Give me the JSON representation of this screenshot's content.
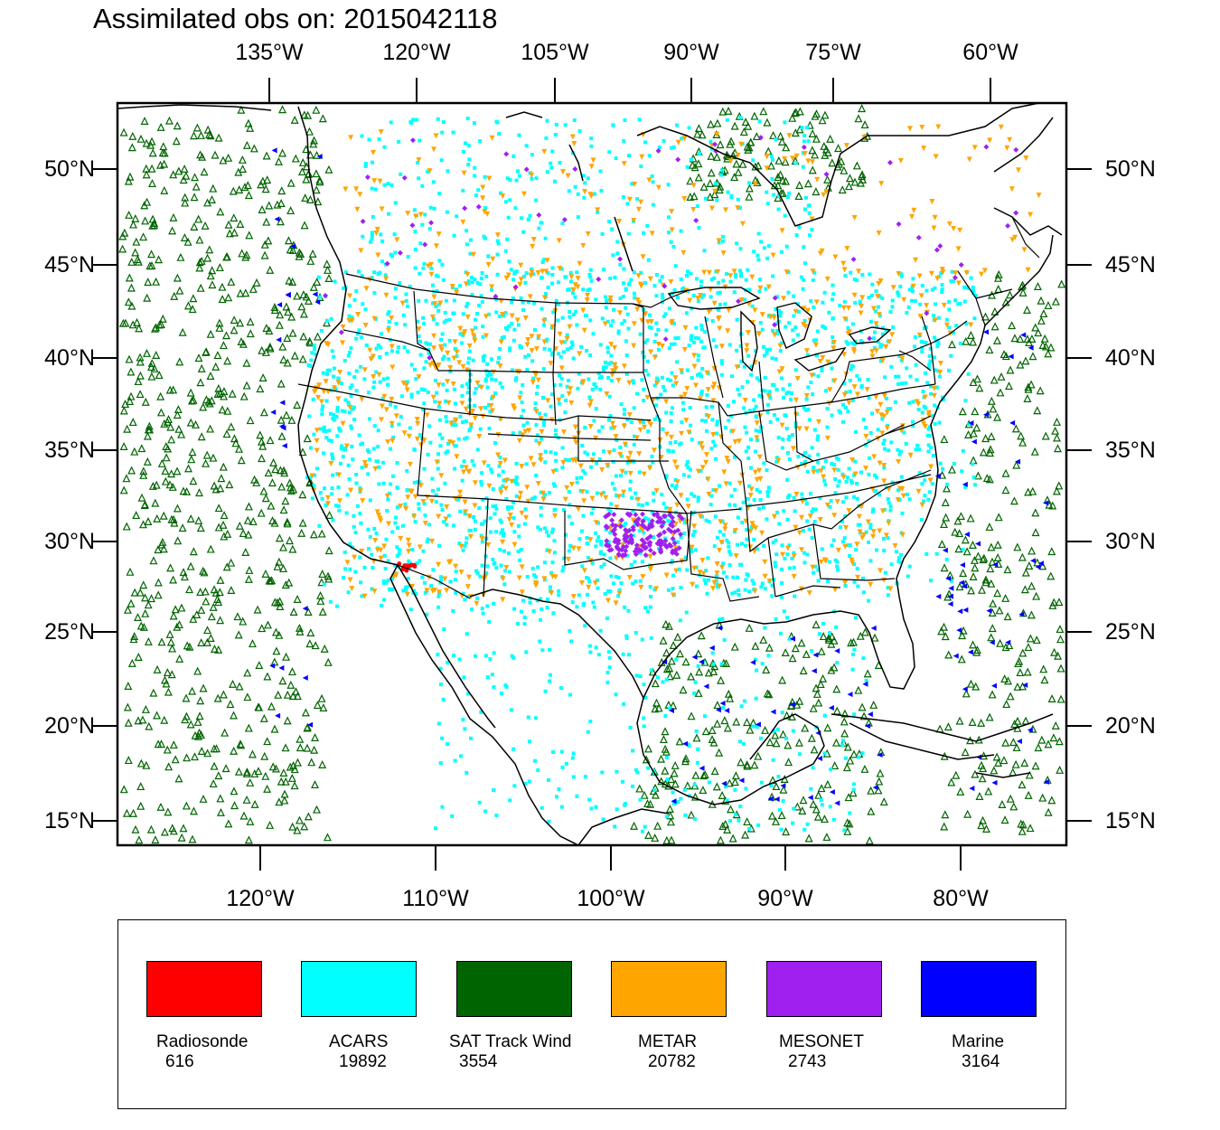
{
  "title": "Assimilated obs on: 2015042118",
  "axes": {
    "top_lon_labels": [
      "135°W",
      "120°W",
      "105°W",
      "90°W",
      "75°W",
      "60°W"
    ],
    "bottom_lon_labels": [
      "120°W",
      "110°W",
      "100°W",
      "90°W",
      "80°W"
    ],
    "lat_labels": [
      "50°N",
      "45°N",
      "40°N",
      "35°N",
      "30°N",
      "25°N",
      "20°N",
      "15°N"
    ]
  },
  "legend": [
    {
      "name": "Radiosonde",
      "count": "616",
      "color": "#ff0000",
      "marker": "dot"
    },
    {
      "name": "ACARS",
      "count": "19892",
      "color": "#00ffff",
      "marker": "square"
    },
    {
      "name": "SAT Track Wind",
      "count": "3554",
      "color": "#006400",
      "marker": "triangle-up"
    },
    {
      "name": "METAR",
      "count": "20782",
      "color": "#ffa500",
      "marker": "triangle-down"
    },
    {
      "name": "MESONET",
      "count": "2743",
      "color": "#a020f0",
      "marker": "diamond"
    },
    {
      "name": "Marine",
      "count": "3164",
      "color": "#0000ff",
      "marker": "triangle-left"
    }
  ],
  "map": {
    "projection": "lambert-conformal",
    "lat_range": [
      13,
      53
    ],
    "lon_range": [
      -128,
      -65
    ],
    "region": "Continental United States"
  }
}
